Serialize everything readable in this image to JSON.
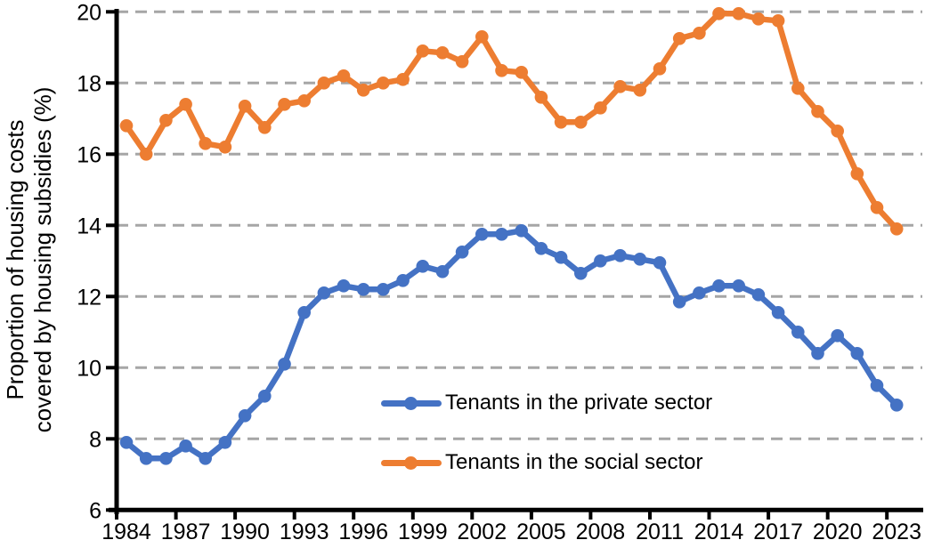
{
  "chart_data": {
    "type": "line",
    "title": "",
    "ylabel_line1": "Proportion of housing costs",
    "ylabel_line2": "covered by housing subsidies (%)",
    "ylim": [
      6,
      20
    ],
    "y_ticks": [
      6,
      8,
      10,
      12,
      14,
      16,
      18,
      20
    ],
    "grid": "horizontal-dashed-gray",
    "legend_position": "inside-plot-center-right",
    "x": [
      1984,
      1985,
      1986,
      1987,
      1988,
      1989,
      1990,
      1991,
      1992,
      1993,
      1994,
      1995,
      1996,
      1997,
      1998,
      1999,
      2000,
      2001,
      2002,
      2003,
      2004,
      2005,
      2006,
      2007,
      2008,
      2009,
      2010,
      2011,
      2012,
      2013,
      2014,
      2015,
      2016,
      2017,
      2018,
      2019,
      2020,
      2021,
      2022,
      2023
    ],
    "x_tick_labels": [
      "1984",
      "1987",
      "1990",
      "1993",
      "1996",
      "1999",
      "2002",
      "2005",
      "2008",
      "2011",
      "2014",
      "2017",
      "2020",
      "2023"
    ],
    "series": [
      {
        "name": "Tenants in the private sector",
        "color": "#4472C4",
        "values": [
          7.9,
          7.45,
          7.45,
          7.8,
          7.45,
          7.9,
          8.65,
          9.2,
          10.1,
          11.55,
          12.1,
          12.3,
          12.2,
          12.2,
          12.45,
          12.85,
          12.7,
          13.25,
          13.75,
          13.75,
          13.85,
          13.35,
          13.1,
          12.65,
          13.0,
          13.15,
          13.05,
          12.95,
          11.85,
          12.1,
          12.3,
          12.3,
          12.05,
          11.55,
          11.0,
          10.4,
          10.9,
          10.4,
          9.5,
          8.95
        ]
      },
      {
        "name": "Tenants in the social sector",
        "color": "#ED7D31",
        "values": [
          16.8,
          16.0,
          16.95,
          17.4,
          16.3,
          16.2,
          17.35,
          16.75,
          17.4,
          17.5,
          18.0,
          18.2,
          17.8,
          18.0,
          18.1,
          18.9,
          18.85,
          18.6,
          19.3,
          18.35,
          18.3,
          17.6,
          16.9,
          16.9,
          17.3,
          17.9,
          17.8,
          18.4,
          19.25,
          19.4,
          19.95,
          19.95,
          19.8,
          19.75,
          17.85,
          17.2,
          16.65,
          15.45,
          14.5,
          13.9
        ]
      }
    ],
    "axis_color": "#000000",
    "gridline_color": "#A6A6A6"
  }
}
